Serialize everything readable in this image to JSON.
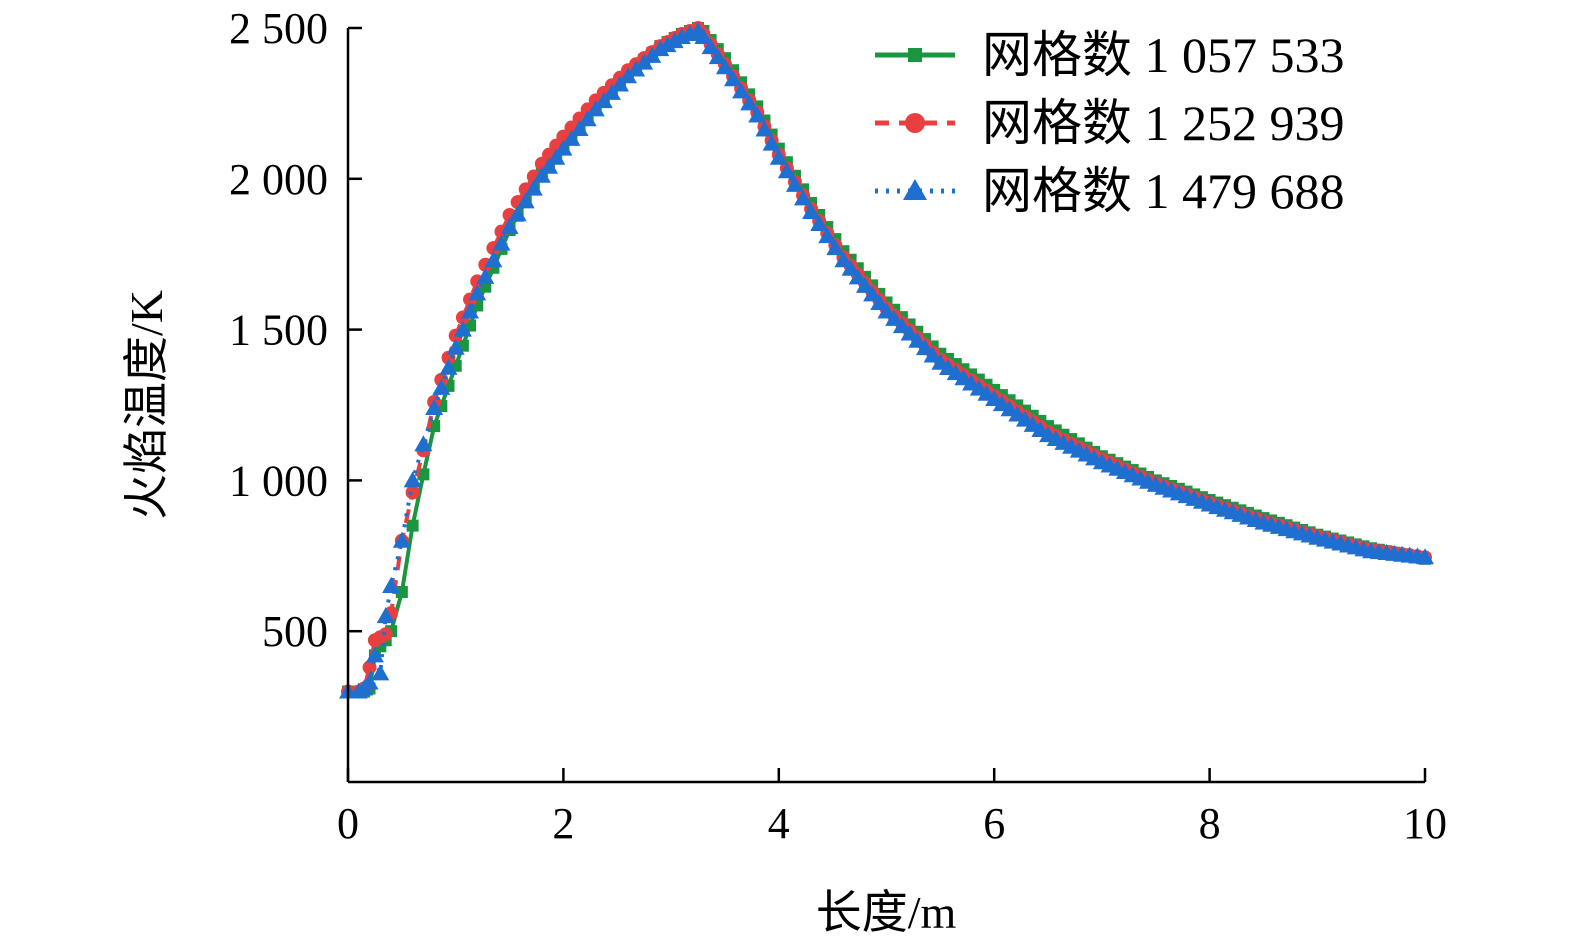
{
  "chart_data": {
    "type": "line",
    "title": "",
    "xlabel": "长度/m",
    "ylabel": "火焰温度/K",
    "xlim": [
      0,
      10
    ],
    "ylim": [
      0,
      2500
    ],
    "x_ticks": [
      0,
      2,
      4,
      6,
      8,
      10
    ],
    "x_tick_labels": [
      "0",
      "2",
      "4",
      "6",
      "8",
      "10"
    ],
    "y_ticks": [
      500,
      1000,
      1500,
      2000,
      2500
    ],
    "y_tick_labels": [
      "500",
      "1 000",
      "1 500",
      "2 000",
      "2 500"
    ],
    "grid": false,
    "legend_position": "top-right",
    "series": [
      {
        "name": "网格数 1 057 533",
        "color": "#1a9641",
        "marker": "square",
        "line_style": "solid",
        "x": [
          0,
          0.1,
          0.15,
          0.2,
          0.25,
          0.3,
          0.35,
          0.4,
          0.5,
          0.6,
          0.7,
          0.8,
          1.0,
          1.2,
          1.5,
          1.8,
          2.0,
          2.3,
          2.6,
          2.9,
          3.1,
          3.25,
          3.3,
          3.5,
          3.8,
          4.0,
          4.3,
          4.6,
          5.0,
          5.5,
          6.0,
          6.5,
          7.0,
          7.5,
          8.0,
          8.5,
          9.0,
          9.5,
          10.0
        ],
        "y": [
          300,
          300,
          300,
          310,
          420,
          450,
          470,
          500,
          630,
          850,
          1020,
          1180,
          1380,
          1580,
          1830,
          2020,
          2110,
          2240,
          2350,
          2440,
          2480,
          2500,
          2490,
          2400,
          2240,
          2100,
          1920,
          1760,
          1590,
          1420,
          1300,
          1180,
          1080,
          1000,
          935,
          875,
          820,
          775,
          740
        ]
      },
      {
        "name": "网格数 1 252 939",
        "color": "#e84040",
        "marker": "circle",
        "line_style": "dashed",
        "x": [
          0,
          0.1,
          0.15,
          0.2,
          0.25,
          0.3,
          0.35,
          0.4,
          0.5,
          0.6,
          0.7,
          0.8,
          1.0,
          1.2,
          1.5,
          1.8,
          2.0,
          2.3,
          2.6,
          2.9,
          3.1,
          3.25,
          3.3,
          3.5,
          3.8,
          4.0,
          4.3,
          4.6,
          5.0,
          5.5,
          6.0,
          6.5,
          7.0,
          7.5,
          8.0,
          8.5,
          9.0,
          9.5,
          10.0
        ],
        "y": [
          300,
          300,
          310,
          380,
          470,
          480,
          490,
          560,
          800,
          960,
          1100,
          1260,
          1480,
          1660,
          1880,
          2050,
          2140,
          2260,
          2360,
          2440,
          2480,
          2500,
          2480,
          2380,
          2220,
          2080,
          1900,
          1740,
          1570,
          1400,
          1280,
          1160,
          1070,
          990,
          925,
          865,
          815,
          770,
          745
        ]
      },
      {
        "name": "网格数 1 479 688",
        "color": "#1f6fd1",
        "marker": "triangle",
        "line_style": "dotted",
        "x": [
          0,
          0.1,
          0.15,
          0.2,
          0.25,
          0.3,
          0.35,
          0.4,
          0.5,
          0.6,
          0.7,
          0.8,
          1.0,
          1.2,
          1.5,
          1.8,
          2.0,
          2.3,
          2.6,
          2.9,
          3.1,
          3.25,
          3.3,
          3.5,
          3.8,
          4.0,
          4.3,
          4.6,
          5.0,
          5.5,
          6.0,
          6.5,
          7.0,
          7.5,
          8.0,
          8.5,
          9.0,
          9.5,
          10.0
        ],
        "y": [
          300,
          300,
          310,
          330,
          420,
          360,
          550,
          650,
          800,
          1000,
          1120,
          1240,
          1440,
          1620,
          1840,
          2010,
          2100,
          2230,
          2340,
          2430,
          2470,
          2490,
          2470,
          2370,
          2210,
          2070,
          1890,
          1730,
          1560,
          1390,
          1270,
          1150,
          1060,
          985,
          920,
          860,
          810,
          765,
          745
        ]
      }
    ]
  }
}
